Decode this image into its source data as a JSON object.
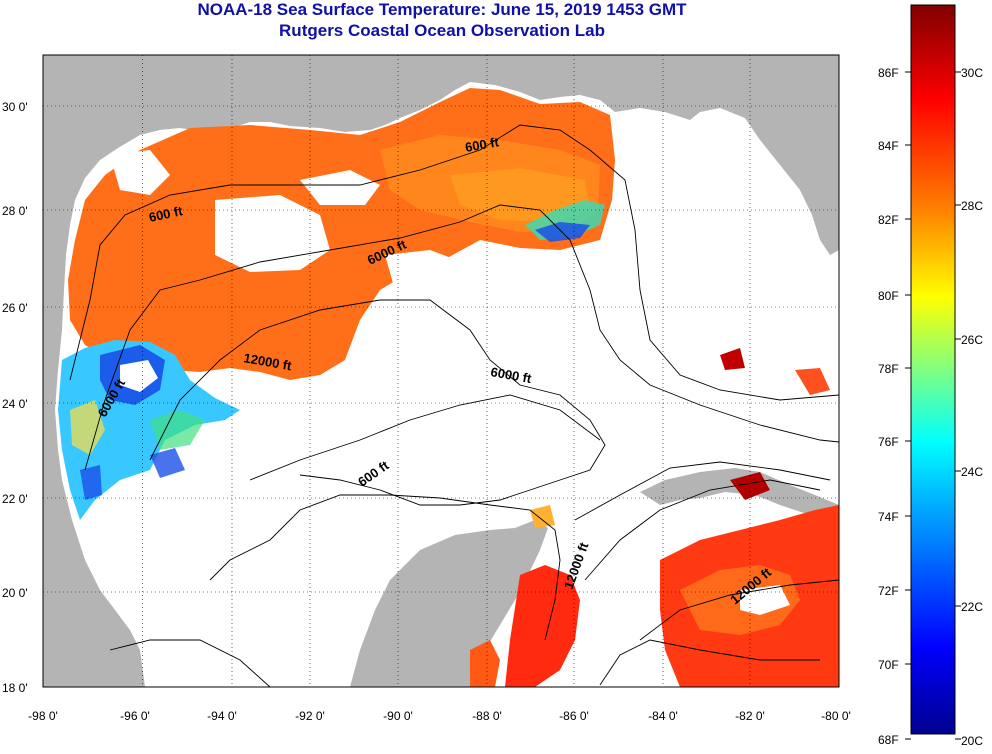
{
  "title": "NOAA-18 Sea Surface Temperature:  June 15, 2019 1453 GMT",
  "subtitle": "Rutgers Coastal Ocean Observation Lab",
  "map": {
    "lon_range": [
      -98,
      -80
    ],
    "lat_range": [
      18,
      31
    ],
    "lon_ticks": [
      "-98 0'",
      "-96 0'",
      "-94 0'",
      "-92 0'",
      "-90 0'",
      "-88 0'",
      "-86 0'",
      "-84 0'",
      "-82 0'",
      "-80 0'"
    ],
    "lat_ticks": [
      "18 0'",
      "20 0'",
      "22 0'",
      "24 0'",
      "26 0'",
      "28 0'",
      "30 0'"
    ],
    "land_color": "#b4b4b4",
    "cloud_color": "#ffffff",
    "contour_labels": [
      "600 ft",
      "600 ft",
      "6000 ft",
      "12000 ft",
      "6000 ft",
      "6000 ft",
      "600 ft",
      "12000 ft",
      "12000 ft"
    ]
  },
  "colorbar": {
    "fahrenheit": [
      "68F",
      "70F",
      "72F",
      "74F",
      "76F",
      "78F",
      "80F",
      "82F",
      "84F",
      "86F"
    ],
    "celsius": [
      "20C",
      "22C",
      "24C",
      "26C",
      "28C",
      "30C"
    ],
    "range_c": [
      20,
      31.5
    ],
    "colors": [
      "#00008f",
      "#0000ff",
      "#00a0ff",
      "#00ffff",
      "#80ff80",
      "#ffff00",
      "#ff8000",
      "#ff0000",
      "#800000"
    ]
  }
}
